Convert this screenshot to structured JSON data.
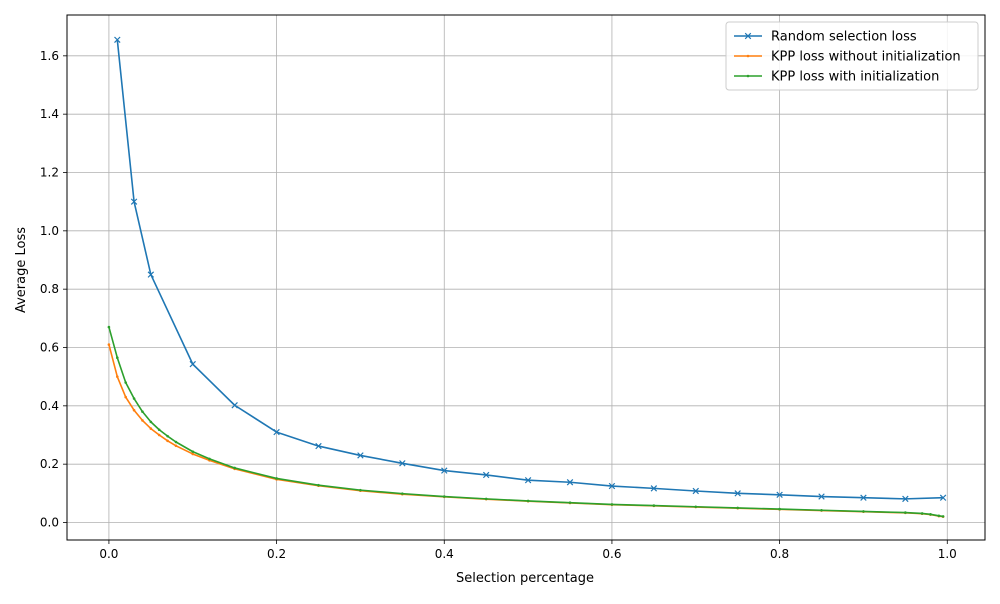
{
  "chart_data": {
    "type": "line",
    "title": "",
    "xlabel": "Selection percentage",
    "ylabel": "Average Loss",
    "xlim": [
      -0.05,
      1.045
    ],
    "ylim": [
      -0.06,
      1.74
    ],
    "xticks": [
      0.0,
      0.2,
      0.4,
      0.6,
      0.8,
      1.0
    ],
    "xtick_labels": [
      "0.0",
      "0.2",
      "0.4",
      "0.6",
      "0.8",
      "1.0"
    ],
    "yticks": [
      0.0,
      0.2,
      0.4,
      0.6,
      0.8,
      1.0,
      1.2,
      1.4,
      1.6
    ],
    "ytick_labels": [
      "0.0",
      "0.2",
      "0.4",
      "0.6",
      "0.8",
      "1.0",
      "1.2",
      "1.4",
      "1.6"
    ],
    "grid": true,
    "legend_position": "top-right",
    "series": [
      {
        "name": "Random selection loss",
        "color": "#1f77b4",
        "marker": "x",
        "x": [
          0.01,
          0.03,
          0.05,
          0.1,
          0.15,
          0.2,
          0.25,
          0.3,
          0.35,
          0.4,
          0.45,
          0.5,
          0.55,
          0.6,
          0.65,
          0.7,
          0.75,
          0.8,
          0.85,
          0.9,
          0.95,
          0.995
        ],
        "y": [
          1.655,
          1.1,
          0.85,
          0.543,
          0.402,
          0.31,
          0.262,
          0.23,
          0.203,
          0.178,
          0.163,
          0.145,
          0.138,
          0.125,
          0.117,
          0.108,
          0.1,
          0.095,
          0.089,
          0.085,
          0.081,
          0.085
        ]
      },
      {
        "name": "KPP loss without initialization",
        "color": "#ff7f0e",
        "marker": "dot",
        "x": [
          0.0,
          0.01,
          0.02,
          0.03,
          0.04,
          0.05,
          0.06,
          0.07,
          0.08,
          0.1,
          0.12,
          0.15,
          0.2,
          0.25,
          0.3,
          0.35,
          0.4,
          0.45,
          0.5,
          0.55,
          0.6,
          0.65,
          0.7,
          0.75,
          0.8,
          0.85,
          0.9,
          0.95,
          0.97,
          0.98,
          0.99,
          0.995
        ],
        "y": [
          0.61,
          0.5,
          0.43,
          0.385,
          0.35,
          0.322,
          0.3,
          0.28,
          0.263,
          0.235,
          0.213,
          0.184,
          0.148,
          0.126,
          0.109,
          0.097,
          0.088,
          0.08,
          0.073,
          0.067,
          0.061,
          0.057,
          0.053,
          0.049,
          0.045,
          0.041,
          0.037,
          0.033,
          0.03,
          0.027,
          0.022,
          0.02
        ]
      },
      {
        "name": "KPP loss with initialization",
        "color": "#2ca02c",
        "marker": "dot",
        "x": [
          0.0,
          0.01,
          0.02,
          0.03,
          0.04,
          0.05,
          0.06,
          0.07,
          0.08,
          0.1,
          0.12,
          0.15,
          0.2,
          0.25,
          0.3,
          0.35,
          0.4,
          0.45,
          0.5,
          0.55,
          0.6,
          0.65,
          0.7,
          0.75,
          0.8,
          0.85,
          0.9,
          0.95,
          0.97,
          0.98,
          0.99,
          0.995
        ],
        "y": [
          0.67,
          0.565,
          0.48,
          0.425,
          0.38,
          0.345,
          0.318,
          0.296,
          0.276,
          0.243,
          0.218,
          0.187,
          0.151,
          0.128,
          0.111,
          0.099,
          0.089,
          0.081,
          0.074,
          0.068,
          0.062,
          0.058,
          0.054,
          0.05,
          0.046,
          0.042,
          0.038,
          0.034,
          0.031,
          0.028,
          0.023,
          0.021
        ]
      }
    ]
  }
}
